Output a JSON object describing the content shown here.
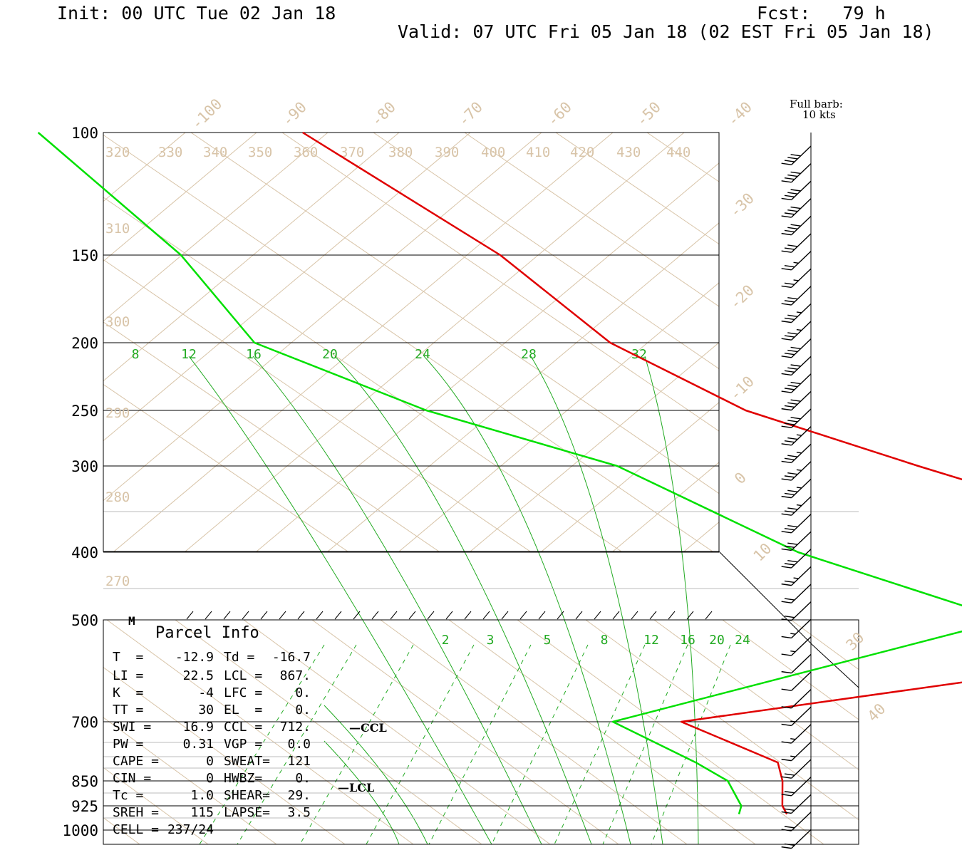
{
  "header": {
    "init": "Init: 00 UTC Tue 02 Jan 18",
    "fcst": "Fcst:   79 h",
    "valid": "Valid: 07 UTC Fri 05 Jan 18 (02 EST Fri 05 Jan 18)"
  },
  "barb_key": {
    "line1": "Full barb:",
    "line2": "10 kts"
  },
  "parcel_info": {
    "title": "Parcel Info",
    "marker": "M",
    "rows": [
      {
        "l1": "T  =",
        "v1": "-12.9",
        "l2": "Td =",
        "v2": "-16.7"
      },
      {
        "l1": "LI =",
        "v1": "22.5",
        "l2": "LCL =",
        "v2": "867."
      },
      {
        "l1": "K  =",
        "v1": "-4",
        "l2": "LFC =",
        "v2": "0."
      },
      {
        "l1": "TT =",
        "v1": "30",
        "l2": "EL  =",
        "v2": "0."
      },
      {
        "l1": "SWI =",
        "v1": "16.9",
        "l2": "CCL =",
        "v2": "712."
      },
      {
        "l1": "PW =",
        "v1": "0.31",
        "l2": "VGP =",
        "v2": "0.0"
      },
      {
        "l1": "CAPE =",
        "v1": "0",
        "l2": "SWEAT=",
        "v2": "121"
      },
      {
        "l1": "CIN =",
        "v1": "0",
        "l2": "HWBZ=",
        "v2": "0."
      },
      {
        "l1": "Tc =",
        "v1": "1.0",
        "l2": "SHEAR=",
        "v2": "29."
      },
      {
        "l1": "SREH =",
        "v1": "115",
        "l2": "LAPSE=",
        "v2": "3.5"
      },
      {
        "l1": "CELL =",
        "v1": "237/24",
        "l2": "",
        "v2": ""
      }
    ]
  },
  "level_markers": {
    "ccl": "CCL",
    "lcl": "LCL"
  },
  "colors": {
    "temperature": "#e00000",
    "dewpoint": "#00e000",
    "isotherm": "#d8c4a8",
    "mixing_ratio": "#22aa22",
    "isobar": "#000000"
  },
  "chart_data": {
    "type": "skew-t",
    "pressure_ticks": [
      "100",
      "150",
      "200",
      "250",
      "300",
      "400",
      "500",
      "700",
      "850",
      "925",
      "1000"
    ],
    "isotherm_labels": [
      "-100",
      "-90",
      "-80",
      "-70",
      "-60",
      "-50",
      "-40",
      "-30",
      "-20",
      "-10",
      "0",
      "10",
      "30",
      "40"
    ],
    "theta_labels": [
      "320",
      "330",
      "340",
      "350",
      "360",
      "370",
      "380",
      "390",
      "400",
      "410",
      "420",
      "430",
      "440",
      "310",
      "300",
      "290",
      "280",
      "270"
    ],
    "mixing_ratio_labels_upper": [
      "8",
      "12",
      "16",
      "20",
      "24",
      "28",
      "32"
    ],
    "mixing_ratio_labels_lower": [
      "2",
      "3",
      "5",
      "8",
      "12",
      "16",
      "20",
      "24"
    ],
    "temperature_profile": [
      [
        100,
        -59
      ],
      [
        150,
        -57
      ],
      [
        200,
        -59
      ],
      [
        250,
        -55
      ],
      [
        300,
        -45
      ],
      [
        400,
        -28
      ],
      [
        500,
        -16
      ],
      [
        700,
        -2
      ],
      [
        800,
        4
      ],
      [
        850,
        1
      ],
      [
        925,
        -4
      ],
      [
        950,
        -5
      ]
    ],
    "dewpoint_profile": [
      [
        100,
        -88
      ],
      [
        150,
        -92
      ],
      [
        200,
        -98
      ],
      [
        250,
        -90
      ],
      [
        300,
        -78
      ],
      [
        400,
        -72
      ],
      [
        500,
        -60
      ],
      [
        700,
        -12
      ],
      [
        800,
        -8
      ],
      [
        850,
        -7
      ],
      [
        925,
        -10
      ],
      [
        950,
        -12
      ]
    ],
    "wind_speeds_kt": [
      40,
      40,
      40,
      40,
      40,
      30,
      25,
      25,
      30,
      35,
      35,
      40,
      40,
      40,
      40,
      40,
      35,
      35,
      35,
      35,
      35,
      30,
      30,
      30,
      25,
      20,
      20,
      15,
      15,
      10,
      10,
      10,
      15,
      15,
      15,
      20,
      20,
      20,
      20,
      20
    ],
    "barb_key_value_kt": 10
  }
}
